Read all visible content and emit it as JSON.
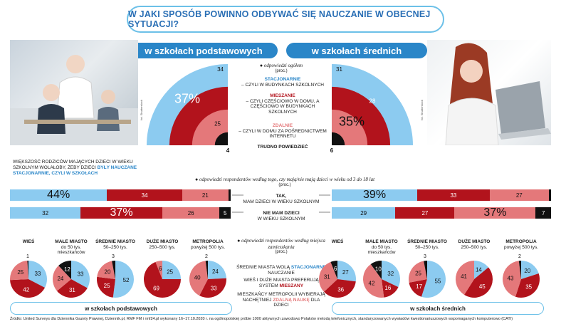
{
  "title": "W JAKI SPOSÓB POWINNO ODBYWAĆ SIĘ NAUCZANIE W OBECNEJ SYTUACJI?",
  "sections": {
    "primary": "w szkołach podstawowych",
    "secondary": "w szkołach średnich"
  },
  "photo_credits": {
    "left": "fot. Shutterstock",
    "right": "fot. Shutterstock"
  },
  "overall": {
    "heading": "odpowiedzi ogółem",
    "heading_unit": "(proc.)",
    "cat_stationary": "STACJONARNIE",
    "cat_stationary_desc": "– CZYLI W BUDYNKACH SZKOLNYCH",
    "cat_mixed": "MIESZANIE",
    "cat_mixed_desc": "– CZYLI CZĘŚCIOWO W DOMU, A CZĘŚCIOWO W BUDYNKACH SZKOLNYCH",
    "cat_remote": "ZDALNIE",
    "cat_remote_desc": "– CZYLI W DOMU ZA POŚREDNICTWEM INTERNETU",
    "cat_unsure": "TRUDNO POWIEDZIEĆ"
  },
  "parents_note": {
    "text1": "WIĘKSZOŚĆ RODZICÓW MAJĄCYCH DZIECI W WIEKU SZKOLNYM WOLAŁOBY, ŻEBY DZIECI",
    "highlight1": "BYŁY NAUCZANE",
    "highlight2": "STACJONARNIE, CZYLI W SZKOŁACH"
  },
  "children_heading": "odpowiedzi respondentów według tego, czy mają/nie mają dzieci w wieku od 3 do 18 lat",
  "children_unit": "(proc.)",
  "row_yes": "TAK,",
  "row_yes_desc": "MAM DZIECI W WIEKU SZKOLNYM",
  "row_no": "NIE MAM DZIECI",
  "row_no_desc": "W WIEKU SZKOLNYM",
  "place_heading": "odpowiedzi respondentów według miejsca zamieszkania",
  "place_unit": "(proc.)",
  "place_note1a": "ŚREDNIE MIASTA WOLĄ",
  "place_note1b": "STACJONARNE",
  "place_note1c": "NAUCZANIE",
  "place_note2a": "WIEŚ I DUŻE MIASTA PREFERUJĄ SYSTEM",
  "place_note2b": "MIESZANY",
  "place_note3a": "MIESZKAŃCY METROPOLII WYBIERAJĄ NACHĘTNIEJ",
  "place_note3b": "ZDALNĄ NAUKĘ",
  "place_note3c": "DLA DZIECI",
  "places": [
    {
      "name": "WIEŚ",
      "sub": ""
    },
    {
      "name": "MAŁE MIASTO",
      "sub": "do 50 tys. mieszkańców"
    },
    {
      "name": "ŚREDNIE MIASTO",
      "sub": "50–250 tys."
    },
    {
      "name": "DUŻE MIASTO",
      "sub": "250–500 tys."
    },
    {
      "name": "METROPOLIA",
      "sub": "powyżej 500 tys."
    }
  ],
  "source": "Źródło: United Surveys dla Dziennika Gazety Prawnej, Dziennik.pl, RMF FM i rmf24.pl wykonany 16–17.10.2020 r. na ogólnopolskiej próbie 1000 aktywnych zawodowo Polaków metodą telefonicznych, standaryzowanych wywiadów kwestionariuszowych wspomaganych komputerowo (CATI)",
  "colors": {
    "stationary": "#8ccbf0",
    "mixed": "#b2131c",
    "remote": "#e4787a",
    "unsure": "#111111",
    "accent": "#2a86c8"
  },
  "chart_data": [
    {
      "type": "pie",
      "title": "w szkołach podstawowych – odpowiedzi ogółem",
      "categories": [
        "STACJONARNIE",
        "MIESZANIE",
        "ZDALNIE",
        "TRUDNO POWIEDZIEĆ"
      ],
      "values": [
        34,
        37,
        25,
        4
      ],
      "labels": [
        "34",
        "37%",
        "25",
        "4"
      ]
    },
    {
      "type": "pie",
      "title": "w szkołach średnich – odpowiedzi ogółem",
      "categories": [
        "STACJONARNIE",
        "MIESZANIE",
        "ZDALNIE",
        "TRUDNO POWIEDZIEĆ"
      ],
      "values": [
        31,
        28,
        35,
        6
      ],
      "labels": [
        "31",
        "28",
        "35%",
        "6"
      ]
    },
    {
      "type": "bar",
      "title": "w szkołach podstawowych – według dzieci",
      "categories": [
        "TAK, MAM DZIECI W WIEKU SZKOLNYM",
        "NIE MAM DZIECI W WIEKU SZKOLNYM"
      ],
      "series": [
        {
          "name": "STACJONARNIE",
          "values": [
            44,
            32
          ],
          "labels": [
            "44%",
            "32"
          ]
        },
        {
          "name": "MIESZANIE",
          "values": [
            34,
            37
          ],
          "labels": [
            "34",
            "37%"
          ]
        },
        {
          "name": "ZDALNIE",
          "values": [
            21,
            26
          ],
          "labels": [
            "21",
            "26"
          ]
        },
        {
          "name": "TRUDNO POWIEDZIEĆ",
          "values": [
            1,
            5
          ],
          "labels": [
            "1",
            "5"
          ]
        }
      ]
    },
    {
      "type": "bar",
      "title": "w szkołach średnich – według dzieci",
      "categories": [
        "TAK, MAM DZIECI W WIEKU SZKOLNYM",
        "NIE MAM DZIECI W WIEKU SZKOLNYM"
      ],
      "series": [
        {
          "name": "STACJONARNIE",
          "values": [
            39,
            29
          ],
          "labels": [
            "39%",
            "29"
          ]
        },
        {
          "name": "MIESZANIE",
          "values": [
            33,
            27
          ],
          "labels": [
            "33",
            "27"
          ]
        },
        {
          "name": "ZDALNIE",
          "values": [
            27,
            37
          ],
          "labels": [
            "27",
            "37%"
          ]
        },
        {
          "name": "TRUDNO POWIEDZIEĆ",
          "values": [
            1,
            7
          ],
          "labels": [
            "1",
            "7"
          ]
        }
      ]
    },
    {
      "type": "pie",
      "title": "w szkołach podstawowych – według miejsca zamieszkania",
      "pies": [
        {
          "place": "WIEŚ",
          "values": [
            33,
            42,
            25,
            1
          ]
        },
        {
          "place": "MAŁE MIASTO",
          "values": [
            33,
            31,
            24,
            12
          ]
        },
        {
          "place": "ŚREDNIE MIASTO",
          "values": [
            52,
            25,
            20,
            3
          ]
        },
        {
          "place": "DUŻE MIASTO",
          "values": [
            25,
            69,
            6,
            0
          ]
        },
        {
          "place": "METROPOLIA",
          "values": [
            24,
            33,
            40,
            2
          ]
        }
      ],
      "categories": [
        "STACJONARNIE",
        "MIESZANIE",
        "ZDALNIE",
        "TRUDNO POWIEDZIEĆ"
      ]
    },
    {
      "type": "pie",
      "title": "w szkołach średnich – według miejsca zamieszkania",
      "pies": [
        {
          "place": "WIEŚ",
          "values": [
            27,
            36,
            31,
            6
          ]
        },
        {
          "place": "MAŁE MIASTO",
          "values": [
            32,
            16,
            42,
            10
          ]
        },
        {
          "place": "ŚREDNIE MIASTO",
          "values": [
            55,
            17,
            25,
            3
          ]
        },
        {
          "place": "DUŻE MIASTO",
          "values": [
            14,
            45,
            41,
            0
          ]
        },
        {
          "place": "METROPOLIA",
          "values": [
            20,
            35,
            43,
            2
          ]
        }
      ],
      "categories": [
        "STACJONARNIE",
        "MIESZANIE",
        "ZDALNIE",
        "TRUDNO POWIEDZIEĆ"
      ]
    }
  ]
}
